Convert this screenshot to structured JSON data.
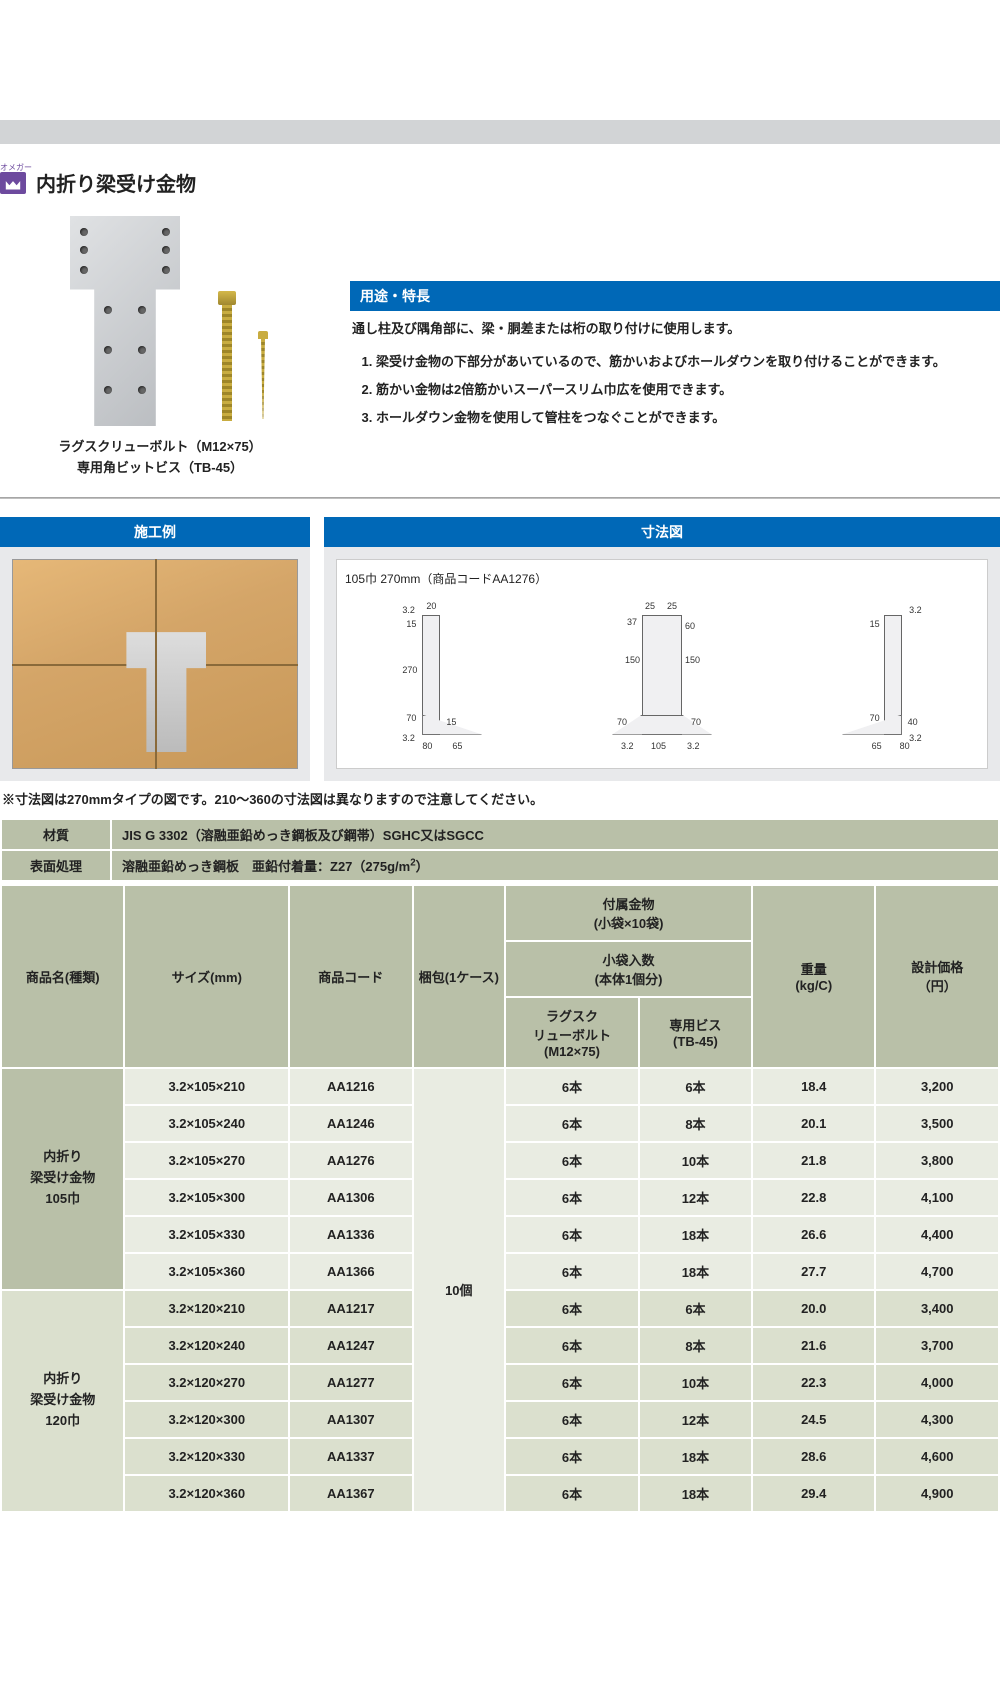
{
  "brand_tag": "オメガー",
  "title": "内折り梁受け金物",
  "product_caption_line1": "ラグスクリューボルト（M12×75）",
  "product_caption_line2": "専用角ビットビス（TB-45）",
  "usage_header": "用途・特長",
  "usage_desc": "通し柱及び隅角部に、梁・胴差または桁の取り付けに使用します。",
  "features": [
    "梁受け金物の下部分があいているので、筋かいおよびホールダウンを取り付けることができます。",
    "筋かい金物は2倍筋かいスーパースリム巾広を使用できます。",
    "ホールダウン金物を使用して管柱をつなぐことができます。"
  ],
  "panel_left_header": "施工例",
  "panel_right_header": "寸法図",
  "dim_title": "105巾 270mm（商品コードAA1276）",
  "dim_note": "※寸法図は270mmタイプの図です。210～360の寸法図は異なりますので注意してください。",
  "spec_rows": [
    {
      "label": "材質",
      "value": "JIS G 3302（溶融亜鉛めっき鋼板及び鋼帯）SGHC又はSGCC"
    },
    {
      "label": "表面処理",
      "value": "溶融亜鉛めっき鋼板　亜鉛付着量：Z27（275g/m²）"
    }
  ],
  "table_headers": {
    "name": "商品名(種類)",
    "size": "サイズ(mm)",
    "code": "商品コード",
    "pack": "梱包(1ケース)",
    "included_top": "付属金物\n(小袋×10袋)",
    "included_mid": "小袋入数\n(本体1個分)",
    "bolt": "ラグスク\nリューボルト\n(M12×75)",
    "vis": "専用ビス\n(TB-45)",
    "weight": "重量\n(kg/C)",
    "price": "設計価格\n（円）"
  },
  "pack_value": "10個",
  "groups": [
    {
      "name": "内折り\n梁受け金物\n105巾",
      "cls": "",
      "rows": [
        {
          "size": "3.2×105×210",
          "code": "AA1216",
          "bolt": "6本",
          "vis": "6本",
          "weight": "18.4",
          "price": "3,200"
        },
        {
          "size": "3.2×105×240",
          "code": "AA1246",
          "bolt": "6本",
          "vis": "8本",
          "weight": "20.1",
          "price": "3,500"
        },
        {
          "size": "3.2×105×270",
          "code": "AA1276",
          "bolt": "6本",
          "vis": "10本",
          "weight": "21.8",
          "price": "3,800"
        },
        {
          "size": "3.2×105×300",
          "code": "AA1306",
          "bolt": "6本",
          "vis": "12本",
          "weight": "22.8",
          "price": "4,100"
        },
        {
          "size": "3.2×105×330",
          "code": "AA1336",
          "bolt": "6本",
          "vis": "18本",
          "weight": "26.6",
          "price": "4,400"
        },
        {
          "size": "3.2×105×360",
          "code": "AA1366",
          "bolt": "6本",
          "vis": "18本",
          "weight": "27.7",
          "price": "4,700"
        }
      ]
    },
    {
      "name": "内折り\n梁受け金物\n120巾",
      "cls": "group2",
      "rows": [
        {
          "size": "3.2×120×210",
          "code": "AA1217",
          "bolt": "6本",
          "vis": "6本",
          "weight": "20.0",
          "price": "3,400"
        },
        {
          "size": "3.2×120×240",
          "code": "AA1247",
          "bolt": "6本",
          "vis": "8本",
          "weight": "21.6",
          "price": "3,700"
        },
        {
          "size": "3.2×120×270",
          "code": "AA1277",
          "bolt": "6本",
          "vis": "10本",
          "weight": "22.3",
          "price": "4,000"
        },
        {
          "size": "3.2×120×300",
          "code": "AA1307",
          "bolt": "6本",
          "vis": "12本",
          "weight": "24.5",
          "price": "4,300"
        },
        {
          "size": "3.2×120×330",
          "code": "AA1337",
          "bolt": "6本",
          "vis": "18本",
          "weight": "28.6",
          "price": "4,600"
        },
        {
          "size": "3.2×120×360",
          "code": "AA1367",
          "bolt": "6本",
          "vis": "18本",
          "weight": "29.4",
          "price": "4,900"
        }
      ]
    }
  ],
  "dims": {
    "side": [
      "3.2",
      "20",
      "15",
      "270",
      "70",
      "15",
      "3.2",
      "80",
      "65"
    ],
    "front": [
      "25",
      "25",
      "37",
      "60",
      "150",
      "150",
      "70",
      "70",
      "3.2",
      "105",
      "3.2"
    ],
    "side2": [
      "3.2",
      "15",
      "70",
      "40",
      "3.2",
      "65",
      "80"
    ]
  }
}
